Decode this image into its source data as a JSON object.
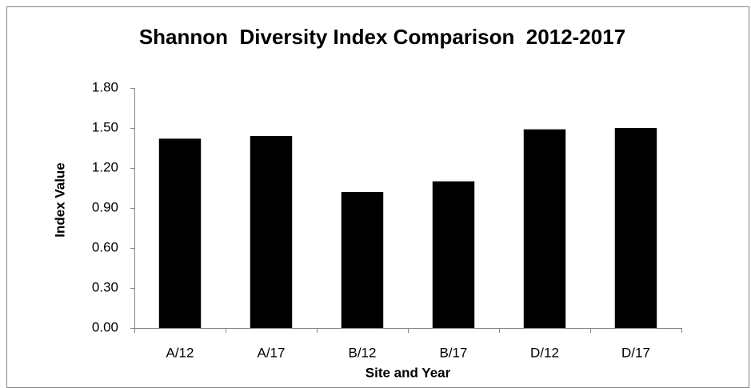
{
  "chart_data": {
    "type": "bar",
    "title": "Shannon  Diversity Index Comparison  2012-2017",
    "x_label": "Site and Year",
    "y_label": "Index Value",
    "categories": [
      "A/12",
      "A/17",
      "B/12",
      "B/17",
      "D/12",
      "D/17"
    ],
    "values": [
      1.42,
      1.44,
      1.02,
      1.1,
      1.49,
      1.5
    ],
    "color": "#000000",
    "ylim": [
      0,
      1.8
    ],
    "yticks": [
      {
        "value": 0,
        "label": "0.00"
      },
      {
        "value": 0.3,
        "label": "0.30"
      },
      {
        "value": 0.6,
        "label": "0.60"
      },
      {
        "value": 0.9,
        "label": "0.90"
      },
      {
        "value": 1.2,
        "label": "1.20"
      },
      {
        "value": 1.5,
        "label": "1.50"
      },
      {
        "value": 1.8,
        "label": "1.80"
      }
    ],
    "grid": false
  }
}
